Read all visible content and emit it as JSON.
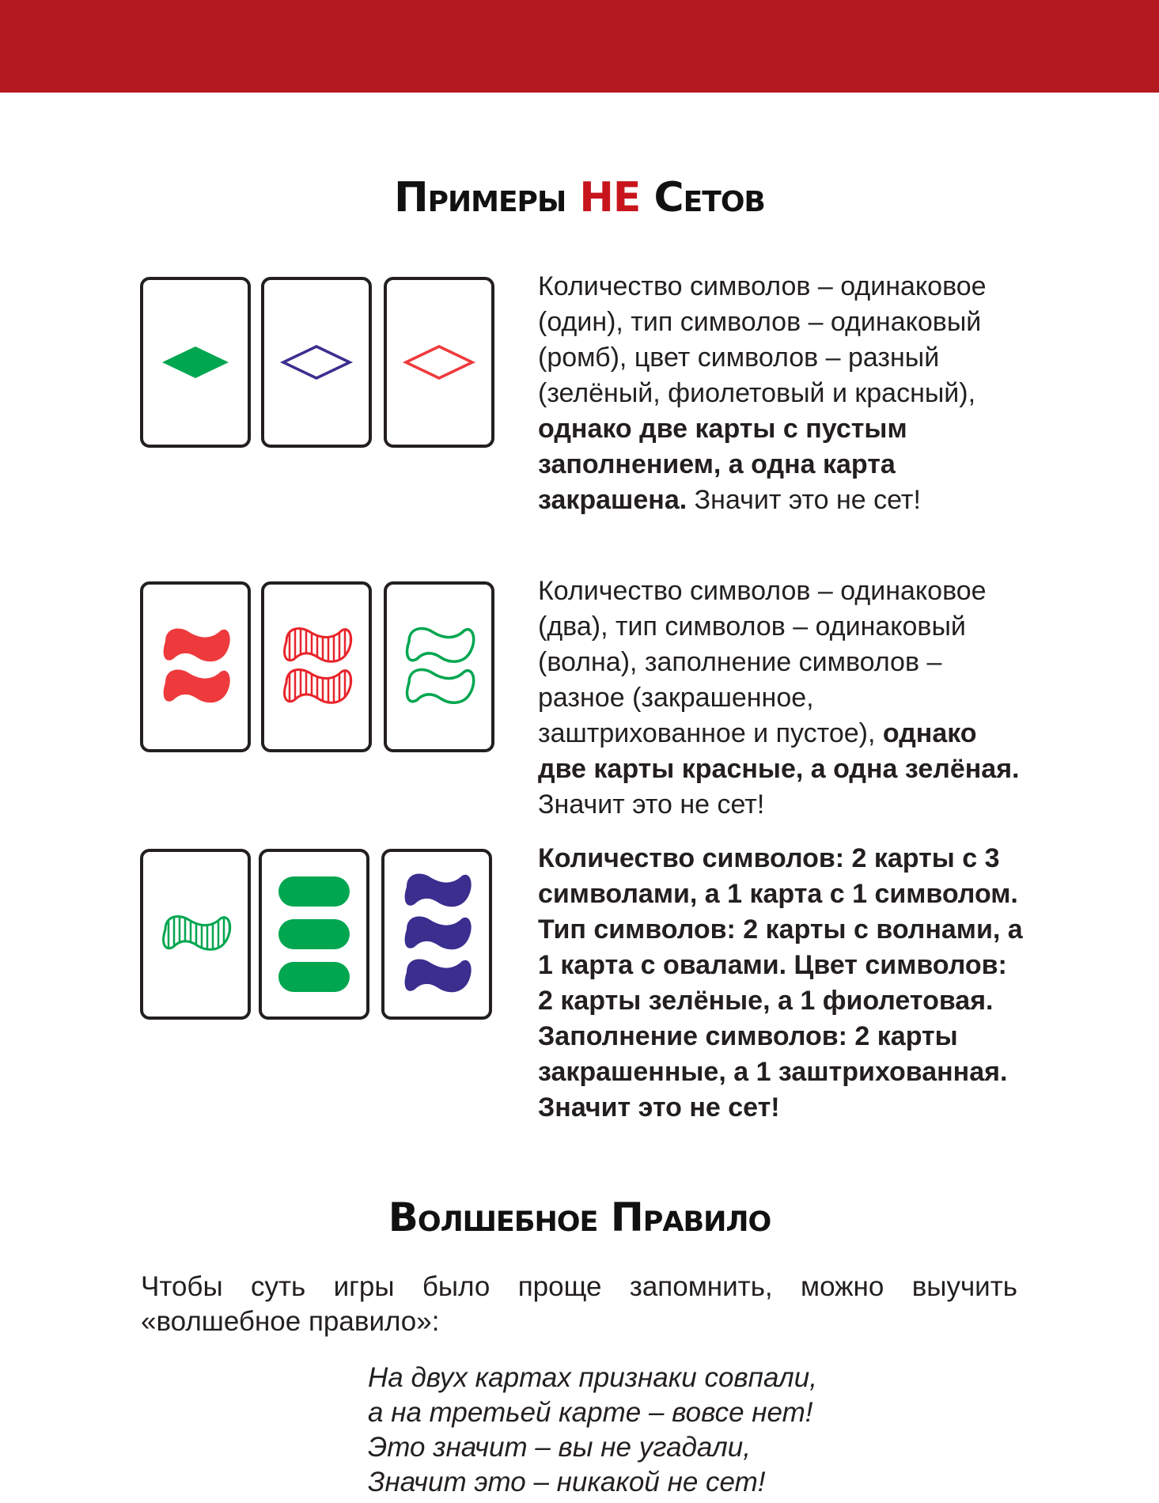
{
  "colors": {
    "band": "#b3191f",
    "accent": "#c8151d",
    "green": "#00a650",
    "purple": "#3a2e8f",
    "red": "#ee3a3d",
    "stripe_red": "#e8242a"
  },
  "section1": {
    "title_part1": "Примеры",
    "title_accent": "НЕ",
    "title_part2": "Сетов"
  },
  "examples": [
    {
      "cards": [
        {
          "count": 1,
          "shape": "diamond",
          "color": "green",
          "fill": "solid"
        },
        {
          "count": 1,
          "shape": "diamond",
          "color": "purple",
          "fill": "empty"
        },
        {
          "count": 1,
          "shape": "diamond",
          "color": "red",
          "fill": "empty"
        }
      ],
      "text_plain": "Количество символов – одинаковое (один), тип символов – одинаковый (ромб), цвет символов – разный (зелёный, фиолетовый и красный), ",
      "text_bold": "однако две карты с пустым заполнением, а одна карта закрашена.",
      "text_end": " Значит это не сет!"
    },
    {
      "cards": [
        {
          "count": 2,
          "shape": "wave",
          "color": "red",
          "fill": "solid"
        },
        {
          "count": 2,
          "shape": "wave",
          "color": "red",
          "fill": "striped"
        },
        {
          "count": 2,
          "shape": "wave",
          "color": "green",
          "fill": "empty"
        }
      ],
      "text_plain": "Количество символов – одинаковое (два), тип символов – одинаковый (волна), заполнение символов – разное (закрашенное, заштрихованное и пустое), ",
      "text_bold": "однако две карты красные, а одна зелёная.",
      "text_end": " Значит это не сет!"
    },
    {
      "cards": [
        {
          "count": 1,
          "shape": "wave",
          "color": "green",
          "fill": "striped"
        },
        {
          "count": 3,
          "shape": "oval",
          "color": "green",
          "fill": "solid"
        },
        {
          "count": 3,
          "shape": "wave",
          "color": "purple",
          "fill": "solid"
        }
      ],
      "text_plain": "",
      "text_bold": "Количество символов: 2 карты с 3 символами, а 1 карта с 1 символом. Тип символов: 2 карты с волнами, а 1 карта с овалами. Цвет символов: 2 карты зелёные, а 1 фиолетовая. Заполнение символов: 2 карты закрашенные, а 1 заштрихованная. Значит это не сет!",
      "text_end": ""
    }
  ],
  "section2": {
    "title": "Волшебное Правило",
    "intro": "Чтобы суть игры было проще запомнить, можно выучить «волшебное правило»:",
    "poem": [
      "На двух картах признаки совпали,",
      "а на третьей карте – вовсе нет!",
      "Это значит – вы не угадали,",
      "Значит это – никакой не сет!"
    ]
  }
}
